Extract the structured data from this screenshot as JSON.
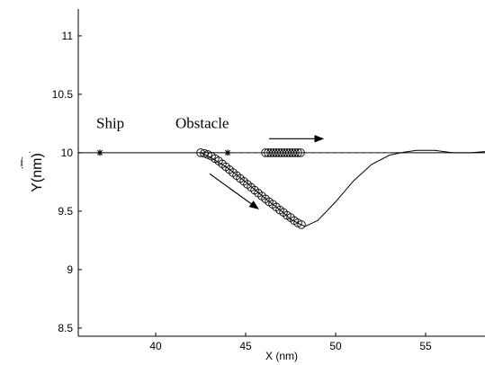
{
  "chart_data": {
    "type": "line",
    "title": "",
    "xlabel": "X (nm)",
    "ylabel": "Y(nm)",
    "ylabel_overlay": "ˊ˭˭ˉ ˌ",
    "xlim": [
      35.7,
      58.3
    ],
    "ylim": [
      8.43,
      11.23
    ],
    "xticks": [
      40,
      45,
      50,
      55
    ],
    "yticks": [
      8.5,
      9,
      9.5,
      10,
      10.5,
      11
    ],
    "ytick_labels": [
      "8.5",
      "9",
      "9.5",
      "10",
      "10.5",
      "11"
    ],
    "grid": false,
    "legend": "none",
    "series": [
      {
        "role": "baseline",
        "style": "solid",
        "color": "#000000",
        "x": [
          35.7,
          58.3
        ],
        "y": [
          10.0,
          10.0
        ]
      },
      {
        "role": "obstacle-path",
        "style": "dashed",
        "color": "#555555",
        "x": [
          44.0,
          53.3
        ],
        "y": [
          10.0,
          10.0
        ]
      },
      {
        "role": "ship-trajectory",
        "style": "solid",
        "color": "#000000",
        "x": [
          42.5,
          43.0,
          44.0,
          45.0,
          46.0,
          47.0,
          47.5,
          48.0,
          48.3,
          49.0,
          50.0,
          51.0,
          52.0,
          53.0,
          53.8,
          54.5,
          55.5,
          56.5,
          57.5,
          58.3
        ],
        "y": [
          10.0,
          9.965,
          9.87,
          9.75,
          9.62,
          9.5,
          9.43,
          9.39,
          9.37,
          9.42,
          9.58,
          9.76,
          9.9,
          9.98,
          10.005,
          10.02,
          10.02,
          10.0,
          10.0,
          10.01
        ]
      }
    ],
    "ship_markers": {
      "x": [
        42.5,
        42.7,
        42.9,
        43.1,
        43.3,
        43.5,
        43.7,
        43.9,
        44.1,
        44.3,
        44.5,
        44.7,
        44.9,
        45.1,
        45.3,
        45.5,
        45.7,
        45.9,
        46.1,
        46.3,
        46.5,
        46.7,
        46.9,
        47.1,
        47.3,
        47.5,
        47.7,
        47.9,
        48.1
      ],
      "y": [
        10.0,
        9.995,
        9.985,
        9.97,
        9.95,
        9.93,
        9.905,
        9.88,
        9.855,
        9.83,
        9.805,
        9.78,
        9.755,
        9.73,
        9.705,
        9.68,
        9.655,
        9.63,
        9.605,
        9.58,
        9.56,
        9.535,
        9.51,
        9.49,
        9.465,
        9.445,
        9.42,
        9.4,
        9.385
      ]
    },
    "obstacle_markers": {
      "x": [
        46.1,
        46.25,
        46.4,
        46.55,
        46.7,
        46.85,
        47.0,
        47.15,
        47.3,
        47.45,
        47.6,
        47.75,
        47.9,
        48.05
      ],
      "y": [
        10.0,
        10.0,
        10.0,
        10.0,
        10.0,
        10.0,
        10.0,
        10.0,
        10.0,
        10.0,
        10.0,
        10.0,
        10.0,
        10.0
      ]
    },
    "start_markers": {
      "x": [
        36.9,
        44.0
      ],
      "y": [
        10.0,
        10.0
      ]
    },
    "annotations": [
      {
        "text": "Ship",
        "x": 36.7,
        "y": 10.21
      },
      {
        "text": "Obstacle",
        "x": 41.1,
        "y": 10.21
      }
    ],
    "arrows": [
      {
        "from": [
          46.3,
          10.12
        ],
        "to": [
          49.3,
          10.12
        ]
      },
      {
        "from": [
          43.0,
          9.82
        ],
        "to": [
          45.7,
          9.52
        ]
      }
    ]
  }
}
